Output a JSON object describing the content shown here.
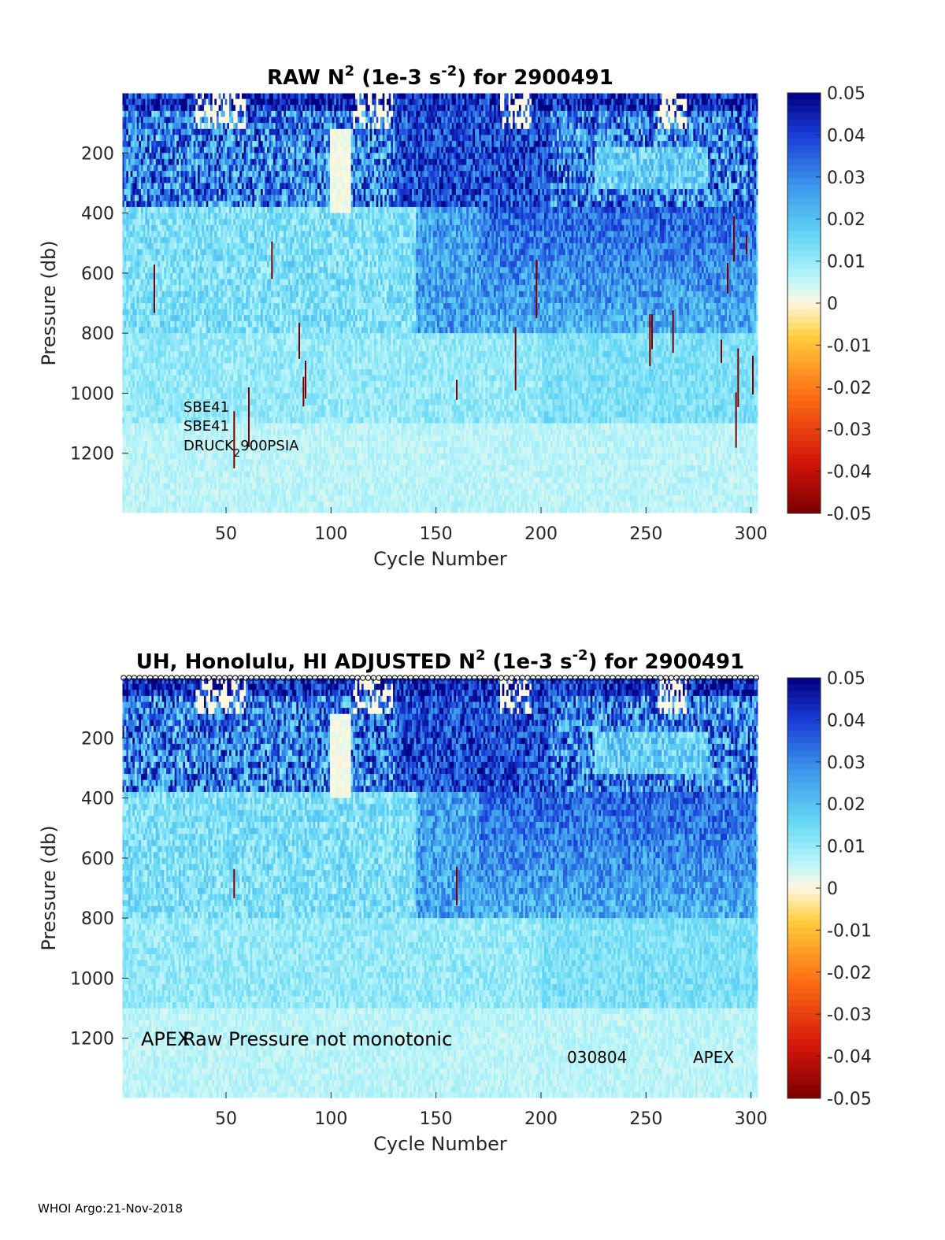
{
  "chart_data": [
    {
      "type": "heatmap",
      "title_prefix": "RAW N",
      "title_sup": "2",
      "title_mid": " (1e-3 s",
      "title_sup2": "-2",
      "title_suffix": ") for 2900491",
      "xlabel": "Cycle Number",
      "ylabel": "Pressure (db)",
      "xlim": [
        1,
        303
      ],
      "ylim": [
        1400,
        0
      ],
      "xticks": [
        "50",
        "100",
        "150",
        "200",
        "250",
        "300"
      ],
      "yticks": [
        "200",
        "400",
        "600",
        "800",
        "1000",
        "1200"
      ],
      "colorbar": {
        "min": -0.05,
        "max": 0.05,
        "ticks": [
          "0.05",
          "0.04",
          "0.03",
          "0.02",
          "0.01",
          "0",
          "-0.01",
          "-0.02",
          "-0.03",
          "-0.04",
          "-0.05"
        ]
      },
      "annotations": [
        "SBE41",
        "SBE41",
        "DRUCK",
        "2",
        "900PSIA"
      ],
      "features": {
        "dark_spikes_cycle": [
          16,
          54,
          61,
          72,
          85,
          87,
          88,
          160,
          188,
          198,
          252,
          253,
          263,
          286,
          289,
          292,
          293,
          294,
          298,
          301
        ],
        "white_plume_cycle": [
          100,
          109
        ],
        "strong_region_cycle": [
          170,
          303
        ]
      }
    },
    {
      "type": "heatmap",
      "title_prefix": "UH, Honolulu, HI  ADJUSTED N",
      "title_sup": "2",
      "title_mid": " (1e-3 s",
      "title_sup2": "-2",
      "title_suffix": ") for 2900491",
      "xlabel": "Cycle Number",
      "ylabel": "Pressure (db)",
      "xlim": [
        1,
        303
      ],
      "ylim": [
        1400,
        0
      ],
      "xticks": [
        "50",
        "100",
        "150",
        "200",
        "250",
        "300"
      ],
      "yticks": [
        "200",
        "400",
        "600",
        "800",
        "1000",
        "1200"
      ],
      "colorbar": {
        "min": -0.05,
        "max": 0.05,
        "ticks": [
          "0.05",
          "0.04",
          "0.03",
          "0.02",
          "0.01",
          "0",
          "-0.01",
          "-0.02",
          "-0.03",
          "-0.04",
          "-0.05"
        ]
      },
      "annotations": [
        "APEX",
        "Raw Pressure not monotonic",
        "030804",
        "APEX"
      ],
      "features": {
        "dark_spikes_cycle": [
          54,
          160
        ],
        "white_plume_cycle": [
          100,
          109
        ],
        "strong_region_cycle": [
          170,
          303
        ]
      }
    }
  ],
  "footer": "WHOI Argo:21-Nov-2018"
}
